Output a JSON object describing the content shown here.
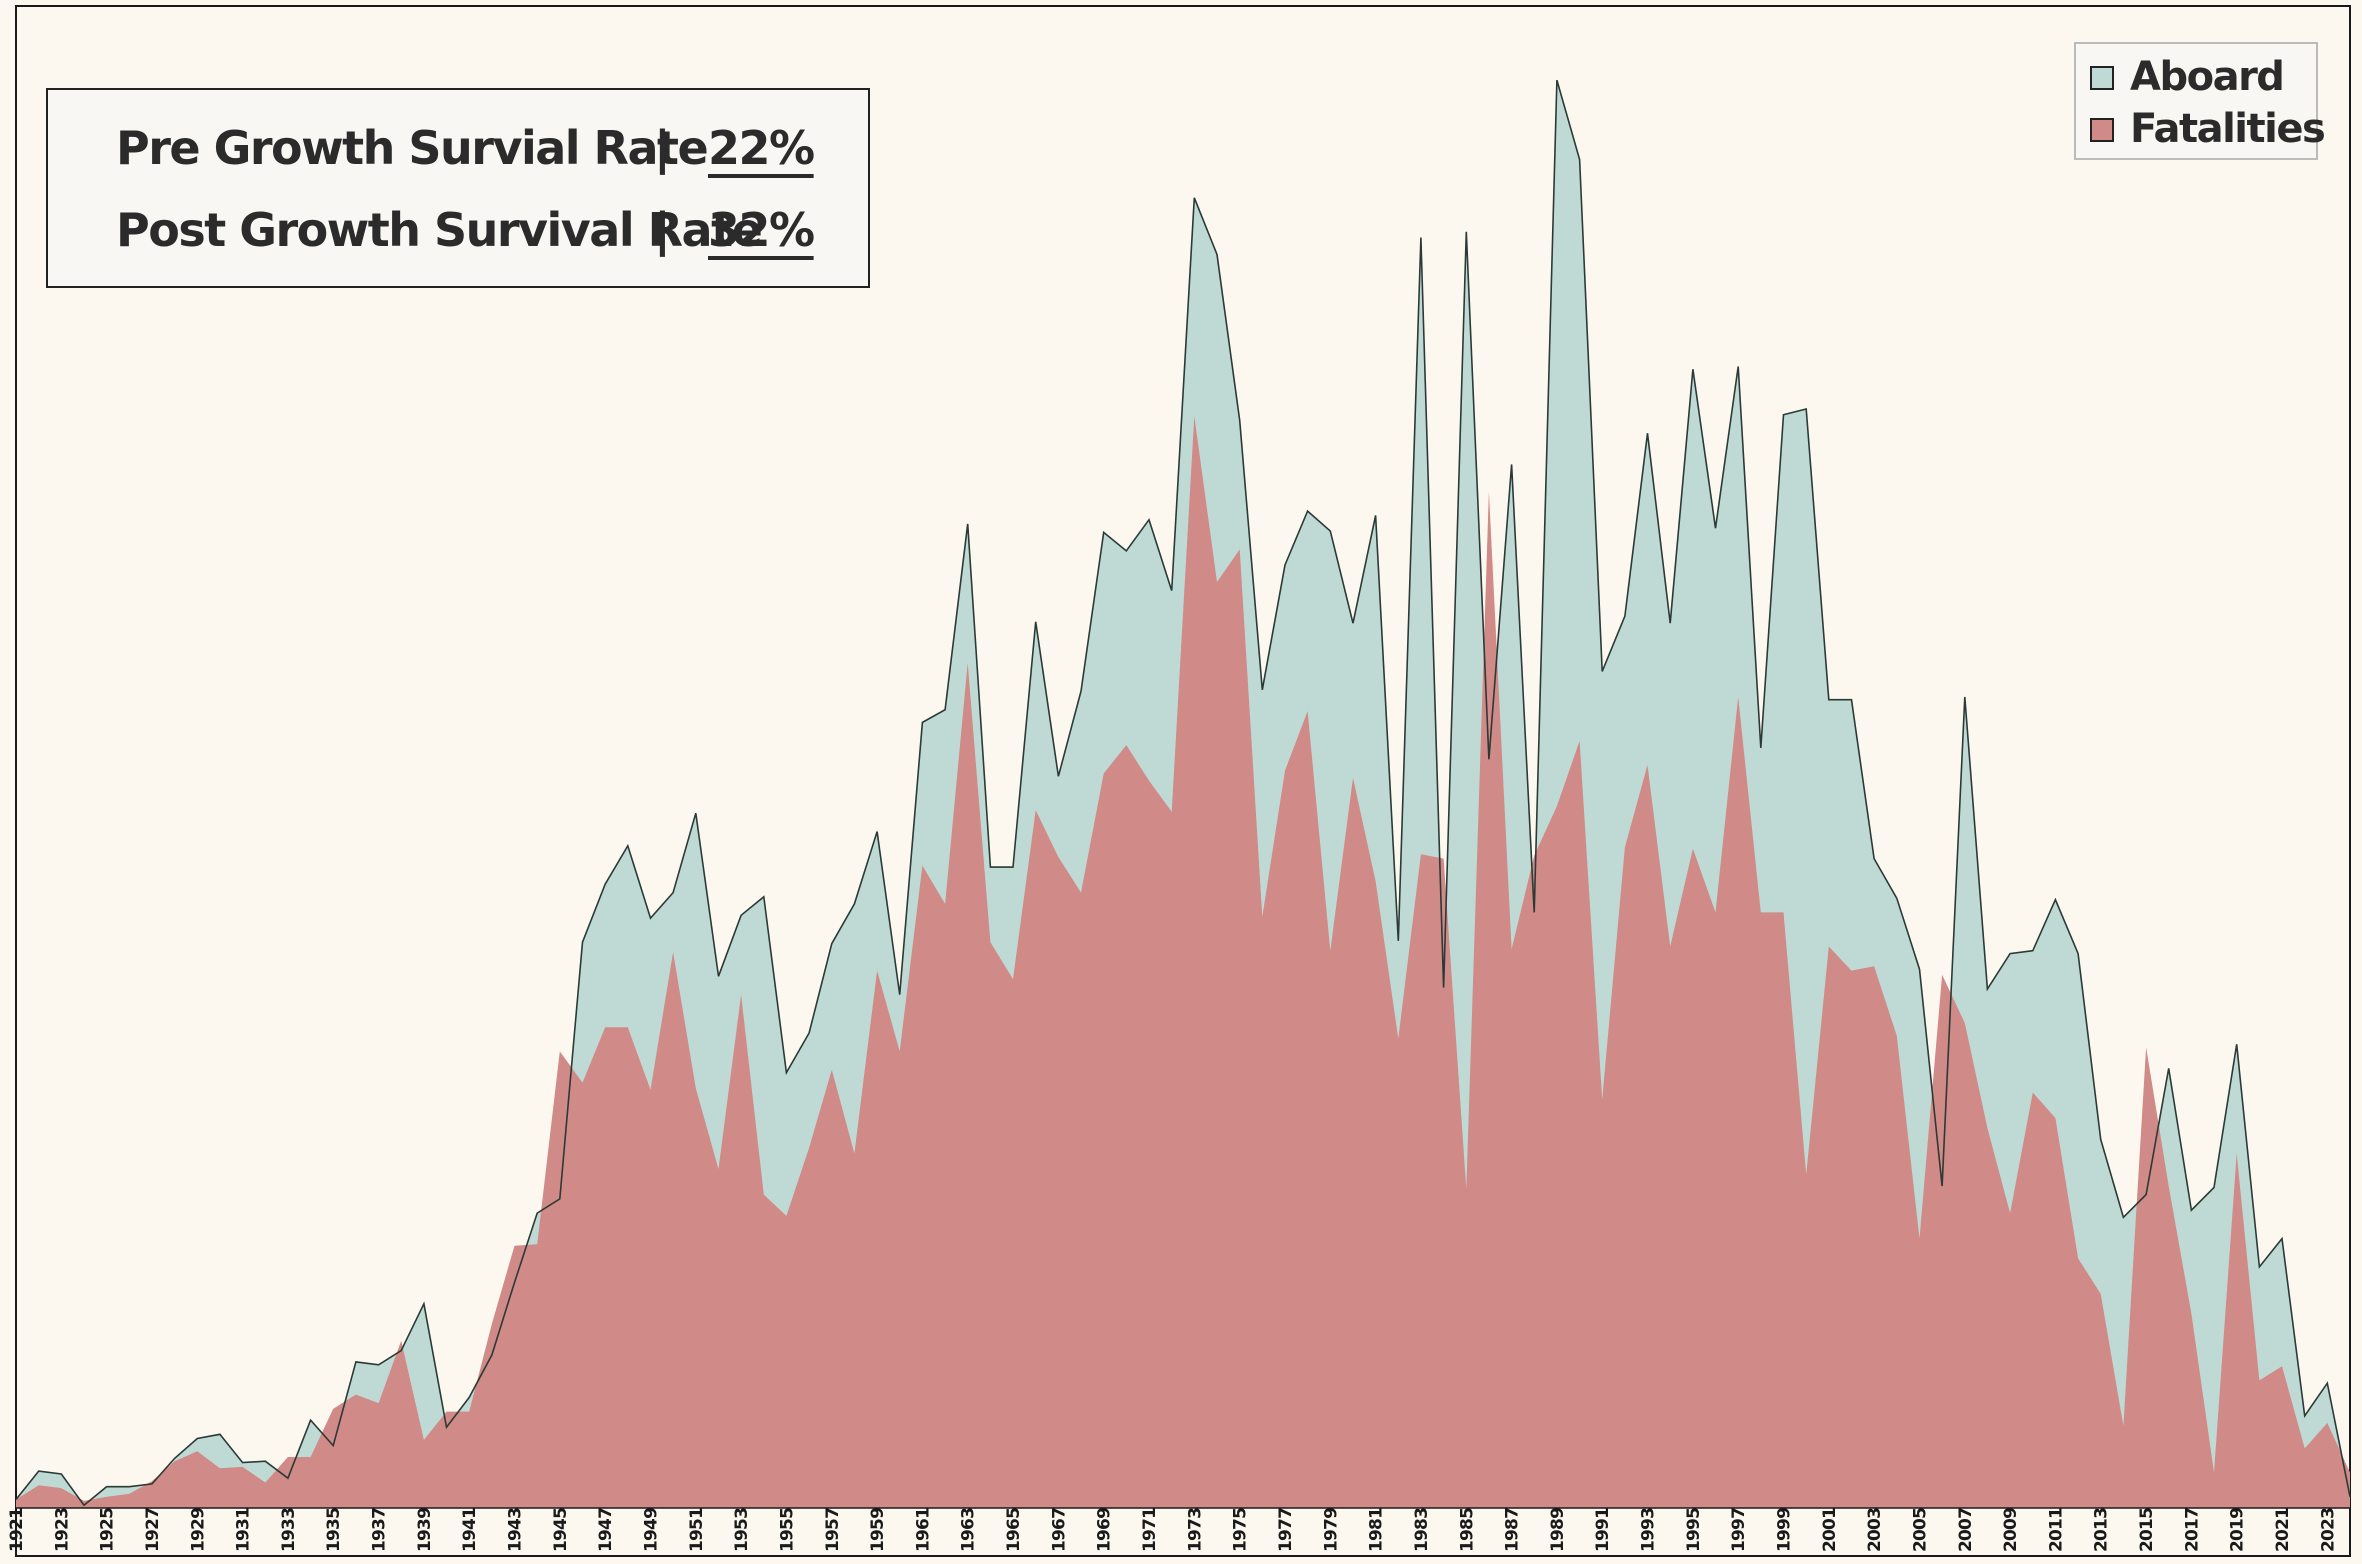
{
  "colors": {
    "background": "#fdf8ef",
    "aboard_fill": "#bfdad4",
    "fatalities_fill": "#d08a88",
    "outline": "#2b3a36"
  },
  "summary": [
    {
      "label": "Pre Growth Survial Rate",
      "separator": "|",
      "value": "22%"
    },
    {
      "label": "Post Growth Survival Rate",
      "separator": "|",
      "value": "32%"
    }
  ],
  "chart_data": {
    "type": "area",
    "title": "",
    "xlabel": "",
    "ylabel": "",
    "x_start": 1921,
    "x_end": 2023,
    "x_tick_step": 2,
    "x_tick_labels": [
      "1921",
      "1923",
      "1925",
      "1927",
      "1929",
      "1931",
      "1933",
      "1935",
      "1937",
      "1939",
      "1941",
      "1943",
      "1945",
      "1947",
      "1949",
      "1951",
      "1953",
      "1955",
      "1957",
      "1959",
      "1961",
      "1963",
      "1965",
      "1967",
      "1969",
      "1971",
      "1973",
      "1975",
      "1977",
      "1979",
      "1981",
      "1983",
      "1985",
      "1987",
      "1989",
      "1991",
      "1993",
      "1995",
      "1997",
      "1999",
      "2001",
      "2003",
      "2005",
      "2007",
      "2009",
      "2011",
      "2013",
      "2015",
      "2017",
      "2019",
      "2021",
      "2023"
    ],
    "y_axis_visible": false,
    "grid": false,
    "legend_position": "top-right",
    "legend": [
      {
        "name": "Aboard",
        "color": "#bfdad4"
      },
      {
        "name": "Fatalities",
        "color": "#d08a88"
      }
    ],
    "series": [
      {
        "name": "Aboard",
        "values": [
          6,
          26,
          24,
          2,
          15,
          15,
          17,
          35,
          49,
          52,
          32,
          33,
          21,
          62,
          44,
          103,
          101,
          111,
          144,
          57,
          78,
          108,
          159,
          208,
          218,
          399,
          440,
          467,
          416,
          434,
          490,
          375,
          418,
          431,
          307,
          335,
          398,
          426,
          477,
          362,
          554,
          563,
          694,
          452,
          452,
          625,
          516,
          576,
          688,
          675,
          697,
          647,
          924,
          884,
          767,
          577,
          665,
          703,
          689,
          624,
          700,
          400,
          896,
          367,
          900,
          528,
          736,
          420,
          1007,
          951,
          590,
          629,
          758,
          624,
          803,
          691,
          805,
          536,
          771,
          775,
          570,
          570,
          458,
          430,
          380,
          227,
          572,
          366,
          391,
          393,
          429,
          391,
          260,
          205,
          221,
          310,
          210,
          226,
          327,
          170,
          190,
          65,
          88,
          8
        ]
      },
      {
        "name": "Fatalities",
        "values": [
          6,
          16,
          14,
          5,
          8,
          10,
          19,
          33,
          40,
          28,
          29,
          18,
          36,
          36,
          70,
          80,
          74,
          118,
          48,
          68,
          68,
          130,
          185,
          186,
          322,
          300,
          339,
          339,
          295,
          392,
          296,
          239,
          362,
          221,
          206,
          254,
          309,
          250,
          379,
          322,
          453,
          426,
          596,
          399,
          373,
          492,
          459,
          434,
          518,
          538,
          513,
          491,
          770,
          653,
          676,
          417,
          520,
          562,
          393,
          515,
          442,
          331,
          461,
          458,
          225,
          717,
          394,
          460,
          495,
          541,
          288,
          466,
          524,
          396,
          465,
          420,
          572,
          420,
          420,
          235,
          396,
          379,
          382,
          333,
          190,
          376,
          342,
          268,
          208,
          293,
          275,
          176,
          151,
          58,
          325,
          227,
          137,
          25,
          250,
          90,
          100,
          42,
          60,
          25
        ]
      }
    ]
  }
}
